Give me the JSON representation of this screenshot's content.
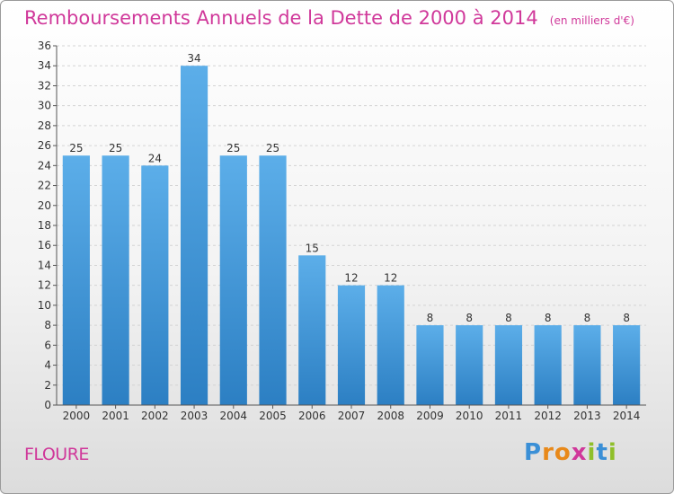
{
  "chart_data": {
    "type": "bar",
    "title": "Remboursements Annuels de la Dette de 2000 à 2014",
    "subtitle": "(en milliers d'€)",
    "categories": [
      "2000",
      "2001",
      "2002",
      "2003",
      "2004",
      "2005",
      "2006",
      "2007",
      "2008",
      "2009",
      "2010",
      "2011",
      "2012",
      "2013",
      "2014"
    ],
    "values": [
      25,
      25,
      24,
      34,
      25,
      25,
      15,
      12,
      12,
      8,
      8,
      8,
      8,
      8,
      8
    ],
    "ylim": [
      0,
      36
    ],
    "yticks": [
      0,
      2,
      4,
      6,
      8,
      10,
      12,
      14,
      16,
      18,
      20,
      22,
      24,
      26,
      28,
      30,
      32,
      34,
      36
    ],
    "grid": true,
    "bar_color_top": "#5caee9",
    "bar_color_bottom": "#2c7fc3"
  },
  "footer": {
    "place": "FLOURE",
    "logo": {
      "letters": [
        "P",
        "r",
        "o",
        "x",
        "i",
        "t",
        "i"
      ],
      "colors": [
        "#3a8fd6",
        "#e8891a",
        "#e8891a",
        "#d0389a",
        "#8fbf2a",
        "#3a8fd6",
        "#8fbf2a"
      ]
    }
  }
}
